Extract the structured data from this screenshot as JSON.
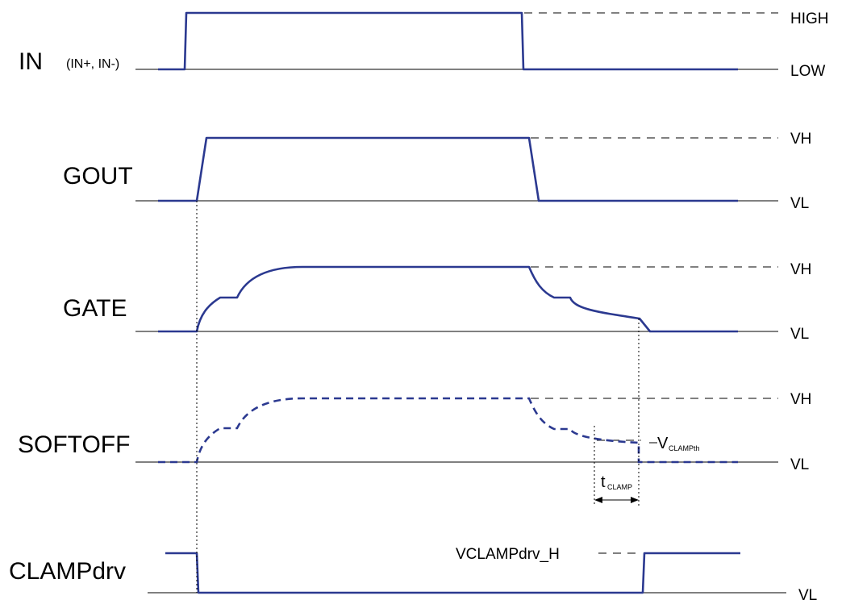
{
  "colors": {
    "waveform": "#2b3990",
    "line": "#000000"
  },
  "signals": {
    "in": {
      "name": "IN",
      "detail": "(IN+, IN-)",
      "high": "HIGH",
      "low": "LOW"
    },
    "gout": {
      "name": "GOUT",
      "high": "VH",
      "low": "VL"
    },
    "gate": {
      "name": "GATE",
      "high": "VH",
      "low": "VL"
    },
    "softoff": {
      "name": "SOFTOFF",
      "high": "VH",
      "low": "VL"
    },
    "clampdrv": {
      "name": "CLAMPdrv",
      "low": "VL"
    }
  },
  "annotations": {
    "vclampth_main": "V",
    "vclampth_sub": "CLAMPth",
    "tclamp_main": "t",
    "tclamp_sub": "CLAMP",
    "vclampdrv_h": "VCLAMPdrv_H"
  }
}
